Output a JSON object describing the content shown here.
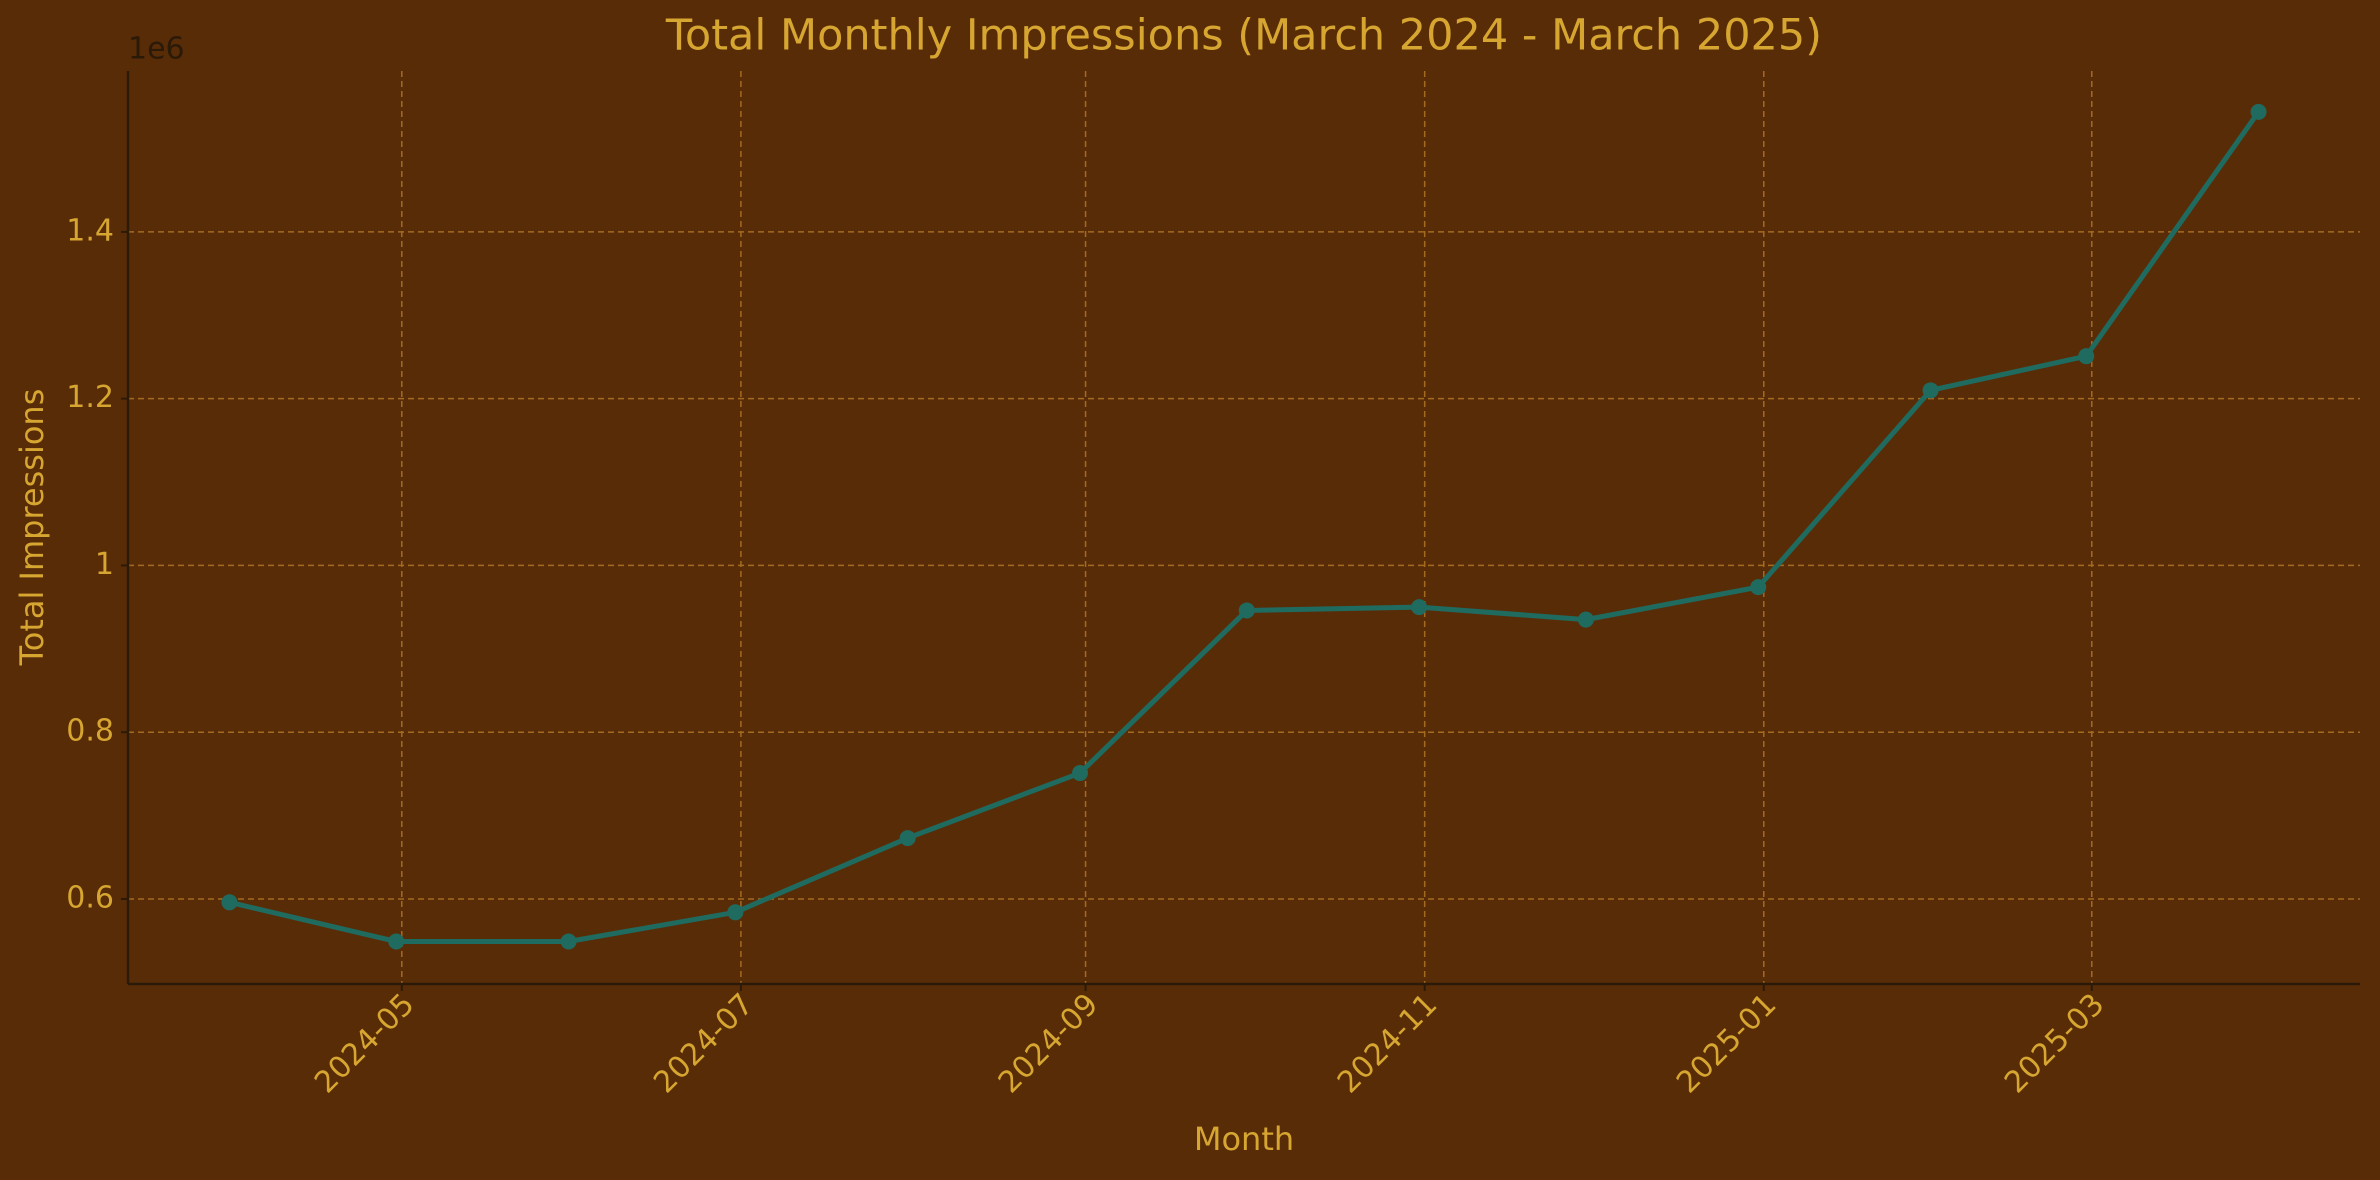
{
  "chart_data": {
    "type": "line",
    "title": "Total Monthly Impressions (March 2024 - March 2025)",
    "x_label": "Month",
    "y_label": "Total Impressions",
    "y_offset_label": "1e6",
    "x": [
      "2024-03",
      "2024-04",
      "2024-05",
      "2024-06",
      "2024-07",
      "2024-08",
      "2024-09",
      "2024-10",
      "2024-11",
      "2024-12",
      "2025-01",
      "2025-02",
      "2025-03"
    ],
    "series": [
      {
        "color": "#1f6b5f",
        "values": [
          0.596,
          0.549,
          0.549,
          0.584,
          0.673,
          0.751,
          0.946,
          0.95,
          0.935,
          0.974,
          1.21,
          1.251,
          1.544
        ]
      }
    ],
    "xticks": [
      "2024-05",
      "2024-07",
      "2024-09",
      "2024-11",
      "2025-01",
      "2025-03"
    ],
    "ylim": [
      0.498,
      1.593
    ],
    "yticks": [
      0.6,
      0.8,
      1.0,
      1.2,
      1.4
    ],
    "grid": true
  }
}
